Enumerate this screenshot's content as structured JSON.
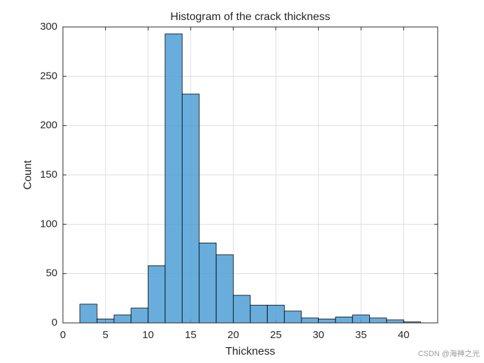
{
  "chart_data": {
    "type": "histogram",
    "title": "Histogram of the crack thickness",
    "x_label": "Thickness",
    "y_label": "Count",
    "bins": [
      2,
      4,
      6,
      8,
      10,
      12,
      14,
      16,
      18,
      20,
      22,
      24,
      26,
      28,
      30,
      32,
      34,
      36,
      38,
      40,
      42
    ],
    "values": [
      19,
      4,
      8,
      15,
      58,
      293,
      232,
      81,
      69,
      28,
      18,
      18,
      12,
      5,
      4,
      6,
      8,
      5,
      3,
      1
    ],
    "color": "#4d9fd6",
    "xlim": [
      0,
      44
    ],
    "ylim": [
      0,
      300
    ],
    "xticks": [
      0,
      5,
      10,
      15,
      20,
      25,
      30,
      35,
      40
    ],
    "yticks": [
      0,
      50,
      100,
      150,
      200,
      250,
      300
    ],
    "grid": true
  },
  "watermark": "CSDN @海神之光"
}
